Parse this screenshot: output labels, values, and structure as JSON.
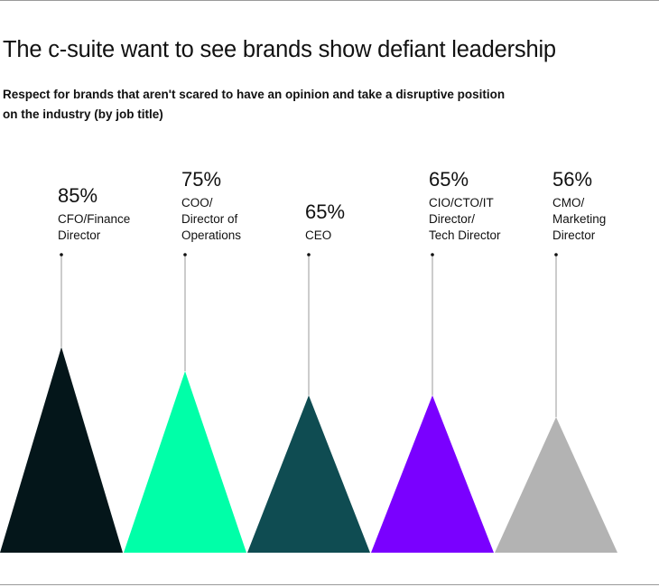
{
  "header": {
    "title": "The c-suite want to see brands show defiant leadership",
    "subtitle": "Respect for brands that aren't scared to have an opinion and take a disruptive position on the industry (by job title)"
  },
  "chart_data": {
    "type": "bar",
    "style": "triangle-peaks",
    "title": "The c-suite want to see brands show defiant leadership",
    "subtitle": "Respect for brands that aren't scared to have an opinion and take a disruptive position on the industry (by job title)",
    "value_suffix": "%",
    "ylim": [
      0,
      100
    ],
    "categories": [
      [
        "CFO/Finance",
        "Director"
      ],
      [
        "COO/",
        "Director of",
        "Operations"
      ],
      [
        "CEO"
      ],
      [
        "CIO/CTO/IT",
        "Director/",
        "Tech Director"
      ],
      [
        "CMO/",
        "Marketing",
        "Director"
      ]
    ],
    "values": [
      85,
      75,
      65,
      65,
      56
    ],
    "colors": [
      "#04161a",
      "#00ffa8",
      "#0f4c52",
      "#7a00ff",
      "#b3b3b3"
    ]
  }
}
